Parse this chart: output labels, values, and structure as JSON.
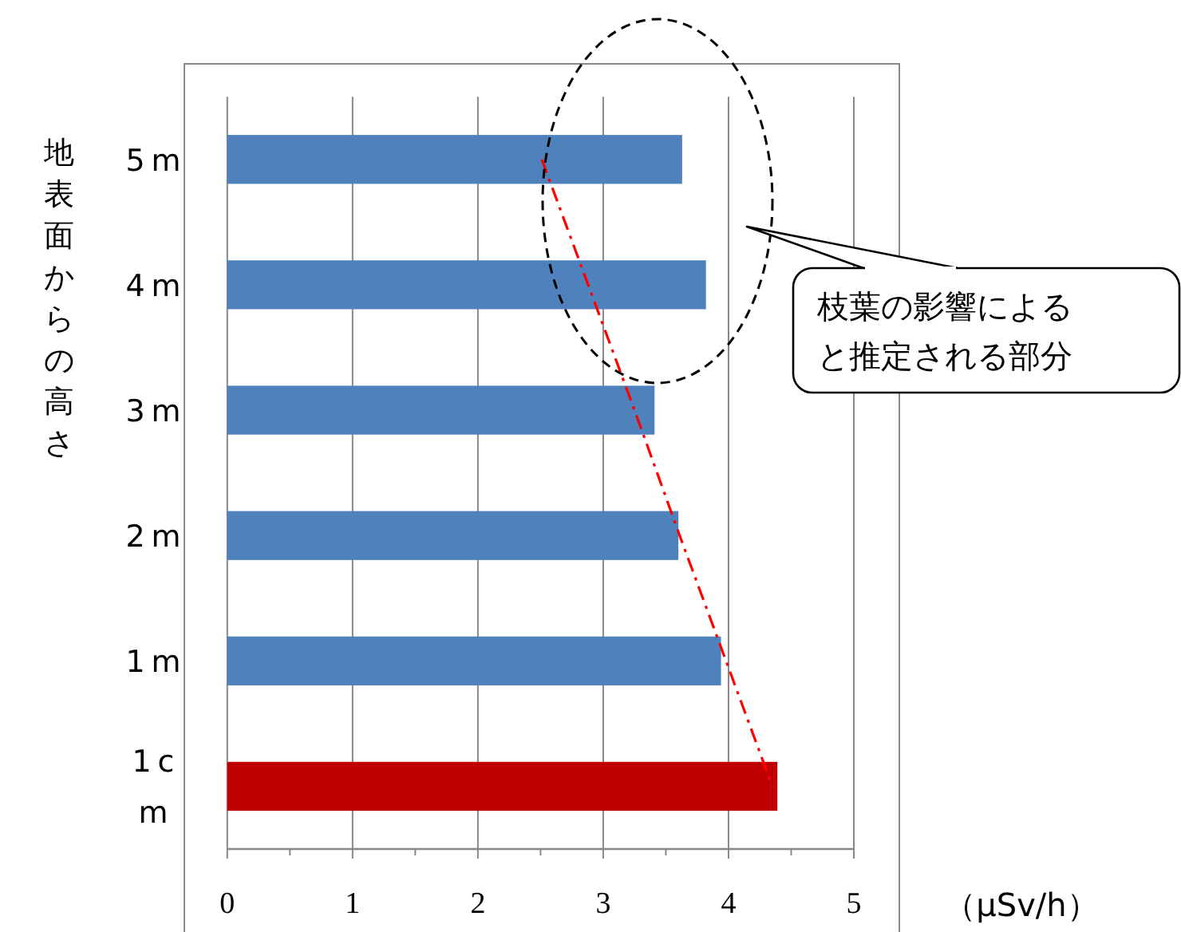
{
  "chart_data": {
    "type": "bar",
    "orientation": "horizontal",
    "ylabel": "地表面からの高さ",
    "xlabel": "（μSv/h）",
    "categories": [
      "5m",
      "4m",
      "3m",
      "2m",
      "1m",
      "1cm"
    ],
    "series": [
      {
        "type": "bar",
        "colors": [
          "#4f81bd",
          "#4f81bd",
          "#4f81bd",
          "#4f81bd",
          "#4f81bd",
          "#c00000"
        ],
        "values": [
          3.63,
          3.82,
          3.41,
          3.6,
          3.94,
          4.39
        ]
      },
      {
        "type": "line",
        "color": "#ff0000",
        "line_style": "dashed",
        "values": [
          2.51,
          2.88,
          3.25,
          3.61,
          3.98,
          4.35
        ]
      }
    ],
    "xlim": [
      0,
      5
    ],
    "xticks": [
      0,
      {
        "value": 0.5,
        "label": null
      },
      1,
      {
        "value": 1.5,
        "label": null
      },
      2,
      {
        "value": 2.5,
        "label": null
      },
      3,
      {
        "value": 3.5,
        "label": null
      },
      4,
      {
        "value": 4.5,
        "label": null
      },
      5
    ],
    "grid": "x",
    "annotations": [
      "枝葉の影響によると推定される部分"
    ]
  }
}
